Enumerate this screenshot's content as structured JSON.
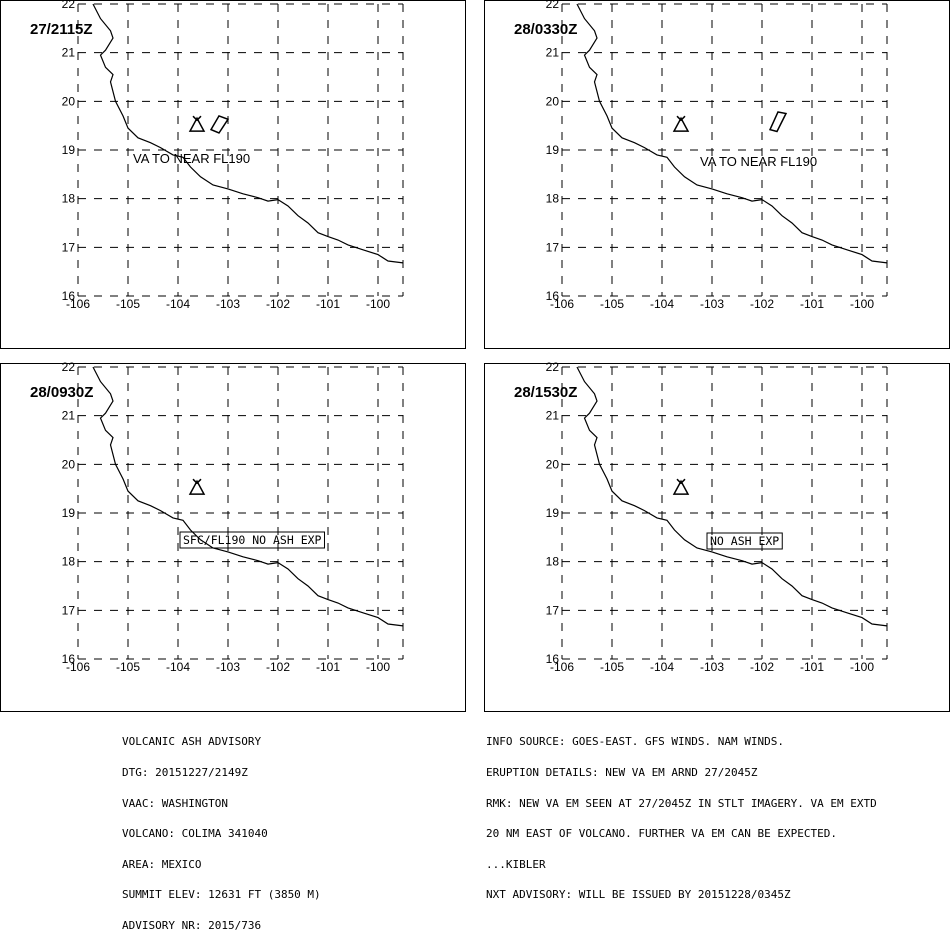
{
  "panels": [
    {
      "time_label": "27/2115Z",
      "text_label": "VA TO NEAR FL190",
      "label_boxed": false,
      "ash_polygon": [
        [
          -103.18,
          19.7
        ],
        [
          -103.0,
          19.63
        ],
        [
          -103.18,
          19.35
        ],
        [
          -103.34,
          19.42
        ]
      ]
    },
    {
      "time_label": "28/0330Z",
      "text_label": "VA TO NEAR FL190",
      "label_boxed": false,
      "ash_polygon": [
        [
          -101.68,
          19.78
        ],
        [
          -101.52,
          19.75
        ],
        [
          -101.7,
          19.38
        ],
        [
          -101.84,
          19.42
        ]
      ]
    },
    {
      "time_label": "28/0930Z",
      "text_label": "SFC/FL190 NO ASH EXP",
      "label_boxed": true,
      "ash_polygon": null
    },
    {
      "time_label": "28/1530Z",
      "text_label": "NO ASH EXP",
      "label_boxed": true,
      "ash_polygon": null
    }
  ],
  "map": {
    "lon_range": [
      -106,
      -99.5
    ],
    "lat_range": [
      16,
      22
    ],
    "lon_ticks": [
      -106,
      -105,
      -104,
      -103,
      -102,
      -101,
      -100
    ],
    "lat_ticks": [
      16,
      17,
      18,
      19,
      20,
      21,
      22
    ],
    "volcano": {
      "name": "COLIMA",
      "lon": -103.62,
      "lat": 19.51
    },
    "coastline": [
      [
        -105.7,
        22.0
      ],
      [
        -105.55,
        21.7
      ],
      [
        -105.35,
        21.45
      ],
      [
        -105.3,
        21.3
      ],
      [
        -105.45,
        21.05
      ],
      [
        -105.55,
        20.95
      ],
      [
        -105.45,
        20.7
      ],
      [
        -105.3,
        20.55
      ],
      [
        -105.35,
        20.4
      ],
      [
        -105.25,
        20.0
      ],
      [
        -105.1,
        19.7
      ],
      [
        -105.0,
        19.45
      ],
      [
        -104.8,
        19.25
      ],
      [
        -104.55,
        19.15
      ],
      [
        -104.35,
        19.05
      ],
      [
        -104.1,
        18.9
      ],
      [
        -103.9,
        18.85
      ],
      [
        -103.75,
        18.65
      ],
      [
        -103.55,
        18.45
      ],
      [
        -103.3,
        18.28
      ],
      [
        -103.0,
        18.2
      ],
      [
        -102.7,
        18.1
      ],
      [
        -102.4,
        18.02
      ],
      [
        -102.2,
        17.95
      ],
      [
        -102.0,
        17.98
      ],
      [
        -101.8,
        17.85
      ],
      [
        -101.6,
        17.65
      ],
      [
        -101.4,
        17.5
      ],
      [
        -101.2,
        17.3
      ],
      [
        -101.0,
        17.22
      ],
      [
        -100.8,
        17.15
      ],
      [
        -100.6,
        17.05
      ],
      [
        -100.3,
        16.95
      ],
      [
        -100.0,
        16.85
      ],
      [
        -99.8,
        16.72
      ],
      [
        -99.5,
        16.68
      ]
    ]
  },
  "info_left": [
    "VOLCANIC ASH ADVISORY",
    "DTG: 20151227/2149Z",
    "VAAC: WASHINGTON",
    "VOLCANO: COLIMA 341040",
    "AREA: MEXICO",
    "SUMMIT ELEV: 12631 FT (3850 M)",
    "ADVISORY NR: 2015/736"
  ],
  "info_right": [
    "INFO SOURCE: GOES-EAST. GFS WINDS. NAM WINDS.",
    "ERUPTION DETAILS: NEW VA EM ARND 27/2045Z",
    "RMK: NEW VA EM SEEN AT 27/2045Z IN STLT IMAGERY. VA EM EXTD",
    "20 NM EAST OF VOLCANO. FURTHER VA EM CAN BE EXPECTED.",
    "...KIBLER",
    "NXT ADVISORY: WILL BE ISSUED BY 20151228/0345Z"
  ]
}
